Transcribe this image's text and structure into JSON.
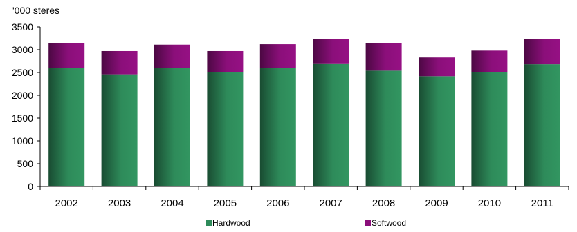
{
  "chart_data": {
    "type": "bar",
    "stacked": true,
    "unit_label": "'000 steres",
    "categories": [
      "2002",
      "2003",
      "2004",
      "2005",
      "2006",
      "2007",
      "2008",
      "2009",
      "2010",
      "2011"
    ],
    "series": [
      {
        "name": "Hardwood",
        "color": "#2e8b5a",
        "values": [
          2600,
          2460,
          2600,
          2510,
          2600,
          2700,
          2540,
          2420,
          2510,
          2680
        ]
      },
      {
        "name": "Softwood",
        "color": "#8b0f7a",
        "values": [
          550,
          510,
          510,
          460,
          520,
          540,
          610,
          410,
          470,
          550
        ]
      }
    ],
    "ylim": [
      0,
      3500
    ],
    "yticks": [
      0,
      500,
      1000,
      1500,
      2000,
      2500,
      3000,
      3500
    ],
    "legend_position": "bottom",
    "grid": false
  }
}
